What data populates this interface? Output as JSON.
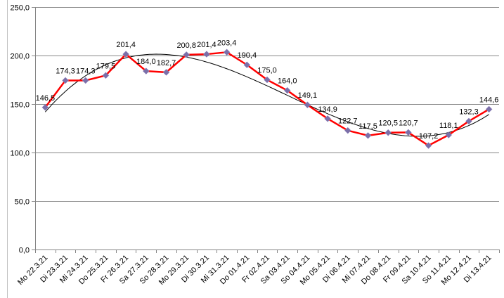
{
  "chart_data": {
    "type": "line",
    "categories": [
      "Mo 22.3.21",
      "Di 23.3.21",
      "Mi 24.3.21",
      "Do 25.3.21",
      "Fr 26.3.21",
      "Sa 27.3.21",
      "So 28.3.21",
      "Mo 29.3.21",
      "Di 30.3.21",
      "Mi 31.3.21",
      "Do 01.4.21",
      "Fr 02.4.21",
      "Sa 03.4.21",
      "So 04.4.21",
      "Mo 05.4.21",
      "Di 06.4.21",
      "Mi 07.4.21",
      "Do 08.4.21",
      "Fr 09.4.21",
      "Sa 10.4.21",
      "So 11.4.21",
      "Mo 12.4.21",
      "Di 13.4.21"
    ],
    "series": [
      {
        "values": [
          146.5,
          174.3,
          174.3,
          179.5,
          201.4,
          184.0,
          182.7,
          200.8,
          201.4,
          203.4,
          190.4,
          175.0,
          164.0,
          149.1,
          134.9,
          122.7,
          117.5,
          120.5,
          120.7,
          107.2,
          118.1,
          132.3,
          144.6
        ],
        "data_labels": [
          "146,5",
          "174,3",
          "174,3",
          "179,5",
          "201,4",
          "184,0",
          "182,7",
          "200,8",
          "201,4",
          "203,4",
          "190,4",
          "175,0",
          "164,0",
          "149,1",
          "134,9",
          "122,7",
          "117,5",
          "120,5",
          "120,7",
          "107,2",
          "118,1",
          "132,3",
          "144,6"
        ],
        "color": "#ff0000",
        "marker_color": "#7b6fa8",
        "marker": "diamond"
      }
    ],
    "trendline": {
      "type": "polynomial",
      "color": "#000000"
    },
    "ylim": [
      0,
      250
    ],
    "yticks": [
      0,
      50,
      100,
      150,
      200,
      250
    ],
    "ytick_labels": [
      "0,0",
      "50,0",
      "100,0",
      "150,0",
      "200,0",
      "250,0"
    ],
    "grid": true,
    "gridline_color": "#868686",
    "title": "",
    "xlabel": "",
    "ylabel": ""
  }
}
